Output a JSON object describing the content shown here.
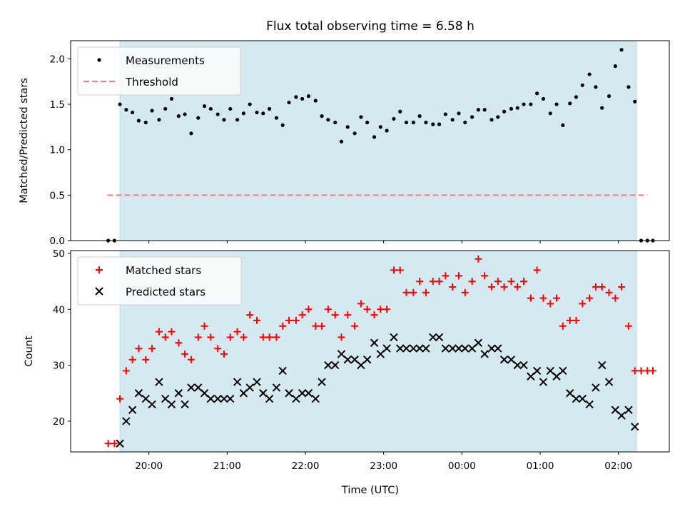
{
  "title": "Flux total observing time = 6.58 h",
  "xlabel": "Time (UTC)",
  "x_ticks": [
    "20:00",
    "21:00",
    "22:00",
    "23:00",
    "00:00",
    "01:00",
    "02:00"
  ],
  "shade_color": "#d4eaf0",
  "chart_data": [
    {
      "type": "scatter",
      "ylabel": "Matched/Predicted stars",
      "ylim": [
        0,
        2.2
      ],
      "xlim_hours": [
        19.0,
        26.65
      ],
      "yticks": [
        "0.0",
        "0.5",
        "1.0",
        "1.5",
        "2.0"
      ],
      "shaded_span_hours": [
        19.63,
        26.23
      ],
      "legend": {
        "location": "top-left",
        "entries": [
          "Measurements",
          "Threshold"
        ]
      },
      "threshold": {
        "name": "Threshold",
        "y": 0.5,
        "x_range_hours": [
          19.47,
          26.37
        ],
        "color": "#f08080",
        "style": "dashed"
      },
      "series": [
        {
          "name": "Measurements",
          "color": "#000000",
          "marker": "dot",
          "x_hours": [
            19.48,
            19.56,
            19.63,
            19.71,
            19.79,
            19.87,
            19.96,
            20.04,
            20.13,
            20.21,
            20.29,
            20.38,
            20.46,
            20.54,
            20.63,
            20.71,
            20.79,
            20.88,
            20.96,
            21.04,
            21.13,
            21.21,
            21.29,
            21.38,
            21.46,
            21.54,
            21.63,
            21.71,
            21.79,
            21.88,
            21.96,
            22.04,
            22.13,
            22.21,
            22.29,
            22.38,
            22.46,
            22.54,
            22.63,
            22.71,
            22.79,
            22.88,
            22.96,
            23.04,
            23.13,
            23.21,
            23.29,
            23.38,
            23.46,
            23.54,
            23.63,
            23.71,
            23.79,
            23.88,
            23.96,
            24.04,
            24.13,
            24.21,
            24.29,
            24.38,
            24.46,
            24.54,
            24.63,
            24.71,
            24.79,
            24.88,
            24.96,
            25.04,
            25.13,
            25.21,
            25.29,
            25.38,
            25.46,
            25.54,
            25.63,
            25.71,
            25.79,
            25.88,
            25.96,
            26.04,
            26.13,
            26.21,
            26.29,
            26.37,
            26.44
          ],
          "y": [
            0,
            0,
            1.5,
            1.44,
            1.41,
            1.32,
            1.3,
            1.43,
            1.33,
            1.45,
            1.56,
            1.37,
            1.39,
            1.18,
            1.35,
            1.48,
            1.45,
            1.39,
            1.33,
            1.45,
            1.33,
            1.4,
            1.5,
            1.41,
            1.4,
            1.45,
            1.35,
            1.27,
            1.52,
            1.58,
            1.56,
            1.59,
            1.54,
            1.37,
            1.33,
            1.3,
            1.09,
            1.25,
            1.18,
            1.36,
            1.3,
            1.14,
            1.25,
            1.21,
            1.34,
            1.42,
            1.3,
            1.3,
            1.37,
            1.3,
            1.28,
            1.28,
            1.39,
            1.33,
            1.4,
            1.3,
            1.36,
            1.44,
            1.44,
            1.33,
            1.36,
            1.42,
            1.45,
            1.46,
            1.5,
            1.5,
            1.62,
            1.56,
            1.4,
            1.5,
            1.27,
            1.51,
            1.58,
            1.71,
            1.83,
            1.69,
            1.46,
            1.59,
            1.92,
            2.1,
            1.69,
            1.53,
            0,
            0,
            0
          ]
        }
      ]
    },
    {
      "type": "scatter",
      "ylabel": "Count",
      "ylim": [
        14.5,
        50.5
      ],
      "xlim_hours": [
        19.0,
        26.65
      ],
      "yticks": [
        "20",
        "30",
        "40",
        "50"
      ],
      "shaded_span_hours": [
        19.63,
        26.23
      ],
      "legend": {
        "location": "top-left",
        "entries": [
          "Matched stars",
          "Predicted stars"
        ]
      },
      "series": [
        {
          "name": "Matched stars",
          "color": "#ff0000",
          "marker": "plus",
          "x_hours": [
            19.48,
            19.56,
            19.63,
            19.71,
            19.79,
            19.87,
            19.96,
            20.04,
            20.13,
            20.21,
            20.29,
            20.38,
            20.46,
            20.54,
            20.63,
            20.71,
            20.79,
            20.88,
            20.96,
            21.04,
            21.13,
            21.21,
            21.29,
            21.38,
            21.46,
            21.54,
            21.63,
            21.71,
            21.79,
            21.88,
            21.96,
            22.04,
            22.13,
            22.21,
            22.29,
            22.38,
            22.46,
            22.54,
            22.63,
            22.71,
            22.79,
            22.88,
            22.96,
            23.04,
            23.13,
            23.21,
            23.29,
            23.38,
            23.46,
            23.54,
            23.63,
            23.71,
            23.79,
            23.88,
            23.96,
            24.04,
            24.13,
            24.21,
            24.29,
            24.38,
            24.46,
            24.54,
            24.63,
            24.71,
            24.79,
            24.88,
            24.96,
            25.04,
            25.13,
            25.21,
            25.29,
            25.38,
            25.46,
            25.54,
            25.63,
            25.71,
            25.79,
            25.88,
            25.96,
            26.04,
            26.13,
            26.21,
            26.29,
            26.37,
            26.44
          ],
          "y": [
            16,
            16,
            24,
            29,
            31,
            33,
            31,
            33,
            36,
            35,
            36,
            34,
            32,
            31,
            35,
            37,
            35,
            33,
            32,
            35,
            36,
            35,
            39,
            38,
            35,
            35,
            35,
            37,
            38,
            38,
            39,
            40,
            37,
            37,
            40,
            39,
            35,
            39,
            37,
            41,
            40,
            39,
            40,
            40,
            47,
            47,
            43,
            43,
            45,
            43,
            45,
            45,
            46,
            44,
            46,
            43,
            45,
            49,
            46,
            44,
            45,
            44,
            45,
            44,
            45,
            42,
            47,
            42,
            41,
            42,
            37,
            38,
            38,
            41,
            42,
            44,
            44,
            43,
            42,
            44,
            37,
            29,
            29,
            29,
            29
          ]
        },
        {
          "name": "Predicted stars",
          "color": "#000000",
          "marker": "x",
          "x_hours": [
            19.63,
            19.71,
            19.79,
            19.87,
            19.96,
            20.04,
            20.13,
            20.21,
            20.29,
            20.38,
            20.46,
            20.54,
            20.63,
            20.71,
            20.79,
            20.88,
            20.96,
            21.04,
            21.13,
            21.21,
            21.29,
            21.38,
            21.46,
            21.54,
            21.63,
            21.71,
            21.79,
            21.88,
            21.96,
            22.04,
            22.13,
            22.21,
            22.29,
            22.38,
            22.46,
            22.54,
            22.63,
            22.71,
            22.79,
            22.88,
            22.96,
            23.04,
            23.13,
            23.21,
            23.29,
            23.38,
            23.46,
            23.54,
            23.63,
            23.71,
            23.79,
            23.88,
            23.96,
            24.04,
            24.13,
            24.21,
            24.29,
            24.38,
            24.46,
            24.54,
            24.63,
            24.71,
            24.79,
            24.88,
            24.96,
            25.04,
            25.13,
            25.21,
            25.29,
            25.38,
            25.46,
            25.54,
            25.63,
            25.71,
            25.79,
            25.88,
            25.96,
            26.04,
            26.13,
            26.21
          ],
          "y": [
            16,
            20,
            22,
            25,
            24,
            23,
            27,
            24,
            23,
            25,
            23,
            26,
            26,
            25,
            24,
            24,
            24,
            24,
            27,
            25,
            26,
            27,
            25,
            24,
            26,
            29,
            25,
            24,
            25,
            25,
            24,
            27,
            30,
            30,
            32,
            31,
            31,
            30,
            31,
            34,
            32,
            33,
            35,
            33,
            33,
            33,
            33,
            33,
            35,
            35,
            33,
            33,
            33,
            33,
            33,
            34,
            32,
            33,
            33,
            31,
            31,
            30,
            30,
            28,
            29,
            27,
            29,
            28,
            29,
            25,
            24,
            24,
            23,
            26,
            30,
            27,
            22,
            21,
            22,
            19
          ]
        }
      ]
    }
  ]
}
